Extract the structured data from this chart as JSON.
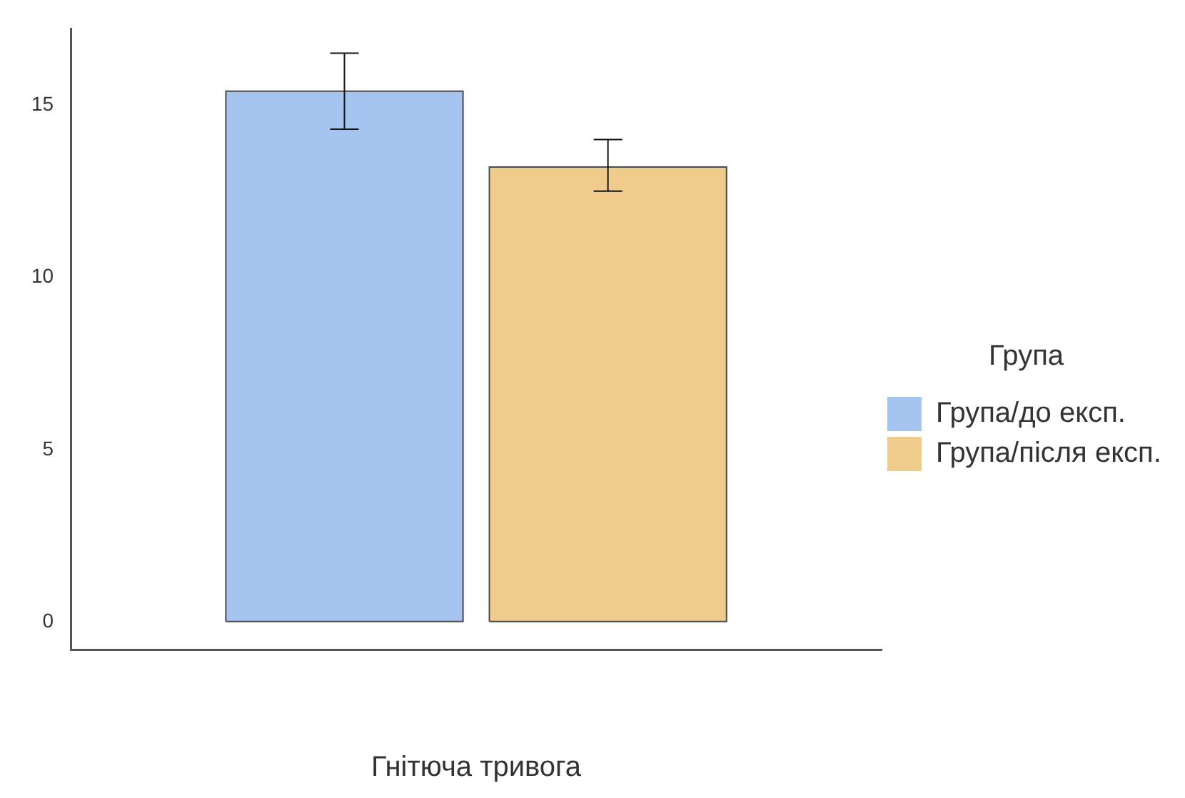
{
  "chart_data": {
    "type": "bar",
    "xlabel": "Гнітюча тривога",
    "legend_title": "Група",
    "categories": [
      null
    ],
    "series": [
      {
        "name": "Група/до експ.",
        "color": "#a6c4f0",
        "values": [
          15.4
        ],
        "errors": [
          [
            14.3,
            16.5
          ]
        ]
      },
      {
        "name": "Група/після експ.",
        "color": "#f0cc8c",
        "values": [
          13.2
        ],
        "errors": [
          [
            12.5,
            14.0
          ]
        ]
      }
    ],
    "ylim": [
      -0.8,
      17.2
    ],
    "yticks": [
      0,
      5,
      10,
      15
    ],
    "grid": false,
    "legend": "right"
  }
}
